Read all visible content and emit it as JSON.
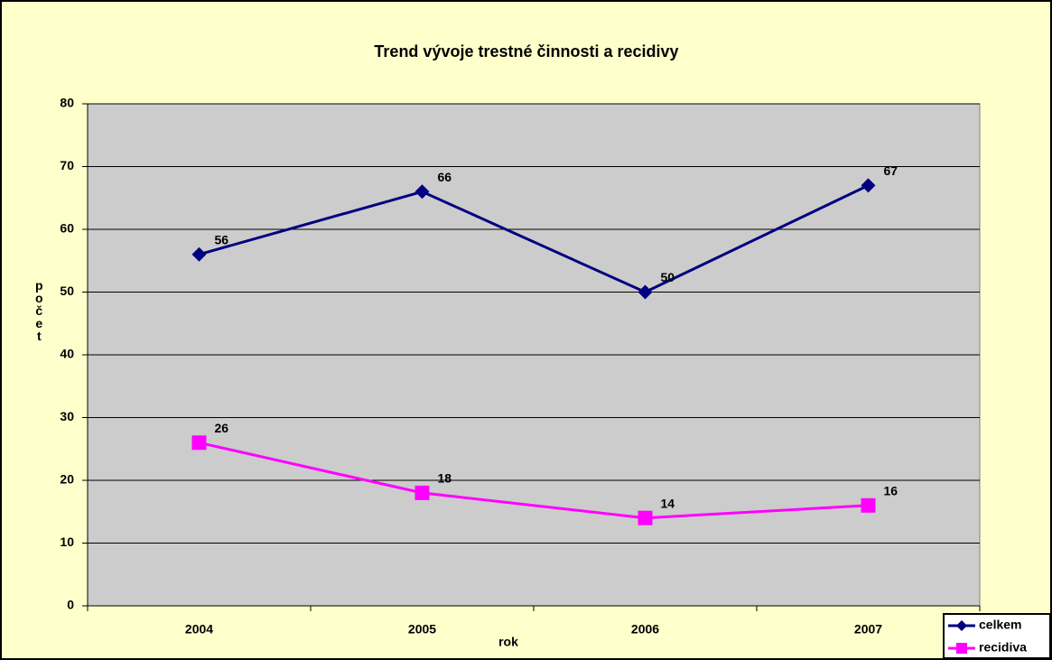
{
  "chart_data": {
    "type": "line",
    "title": "Trend vývoje trestné činnosti a recidivy",
    "x_label": "rok",
    "y_label": "počet",
    "categories": [
      "2004",
      "2005",
      "2006",
      "2007"
    ],
    "series": [
      {
        "name": "celkem",
        "color": "#000080",
        "marker": "diamond",
        "values": [
          56,
          66,
          50,
          67
        ]
      },
      {
        "name": "recidiva",
        "color": "#ff00ff",
        "marker": "square",
        "values": [
          26,
          18,
          14,
          16
        ]
      }
    ],
    "ylim": [
      0,
      80
    ],
    "yticks": [
      0,
      10,
      20,
      30,
      40,
      50,
      60,
      70,
      80
    ],
    "grid": true,
    "legend": "bottom-right"
  }
}
